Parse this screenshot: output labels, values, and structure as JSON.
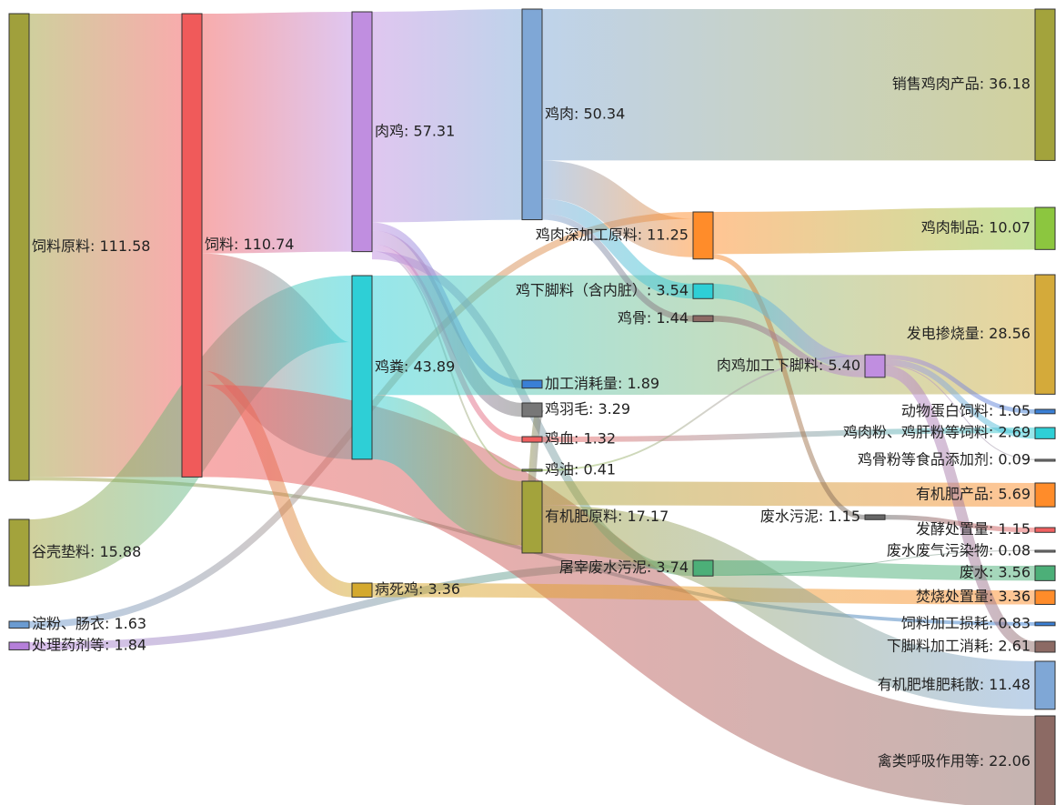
{
  "chart_data": {
    "type": "sankey",
    "nodes": [
      {
        "label": "饲料原料: 111.58",
        "value": 111.58,
        "color": "#a0a03c"
      },
      {
        "label": "谷壳垫料: 15.88",
        "value": 15.88,
        "color": "#a3a33c"
      },
      {
        "label": "淀粉、肠衣: 1.63",
        "value": 1.63,
        "color": "#6b9bd1"
      },
      {
        "label": "处理药剂等: 1.84",
        "value": 1.84,
        "color": "#b57fd9"
      },
      {
        "label": "饲料: 110.74",
        "value": 110.74,
        "color": "#f05a5a"
      },
      {
        "label": "肉鸡: 57.31",
        "value": 57.31,
        "color": "#c08ee0"
      },
      {
        "label": "鸡粪: 43.89",
        "value": 43.89,
        "color": "#2ecfd6"
      },
      {
        "label": "病死鸡: 3.36",
        "value": 3.36,
        "color": "#d4a92e"
      },
      {
        "label": "鸡肉: 50.34",
        "value": 50.34,
        "color": "#7fa7d6"
      },
      {
        "label": "加工消耗量: 1.89",
        "value": 1.89,
        "color": "#3a7fd5"
      },
      {
        "label": "鸡羽毛: 3.29",
        "value": 3.29,
        "color": "#777777"
      },
      {
        "label": "鸡血: 1.32",
        "value": 1.32,
        "color": "#f06060"
      },
      {
        "label": "鸡油: 0.41",
        "value": 0.41,
        "color": "#8fbf4a"
      },
      {
        "label": "有机肥原料: 17.17",
        "value": 17.17,
        "color": "#a3a33c"
      },
      {
        "label": "鸡肉深加工原料: 11.25",
        "value": 11.25,
        "color": "#ff8c2a"
      },
      {
        "label": "鸡下脚料（含内脏）: 3.54",
        "value": 3.54,
        "color": "#2ecfd6"
      },
      {
        "label": "鸡骨: 1.44",
        "value": 1.44,
        "color": "#8c6a64"
      },
      {
        "label": "屠宰废水污泥: 3.74",
        "value": 3.74,
        "color": "#4caf78"
      },
      {
        "label": "肉鸡加工下脚料: 5.40",
        "value": 5.4,
        "color": "#c08ee0"
      },
      {
        "label": "废水污泥: 1.15",
        "value": 1.15,
        "color": "#666666"
      },
      {
        "label": "销售鸡肉产品: 36.18",
        "value": 36.18,
        "color": "#a3a33c"
      },
      {
        "label": "鸡肉制品: 10.07",
        "value": 10.07,
        "color": "#8cc63f"
      },
      {
        "label": "发电掺烧量: 28.56",
        "value": 28.56,
        "color": "#d4aa3a"
      },
      {
        "label": "动物蛋白饲料: 1.05",
        "value": 1.05,
        "color": "#3a7fd5"
      },
      {
        "label": "鸡肉粉、鸡肝粉等饲料: 2.69",
        "value": 2.69,
        "color": "#2ecfd6"
      },
      {
        "label": "鸡骨粉等食品添加剂: 0.09",
        "value": 0.09,
        "color": "#888888"
      },
      {
        "label": "有机肥产品: 5.69",
        "value": 5.69,
        "color": "#ff8c2a"
      },
      {
        "label": "发酵处置量: 1.15",
        "value": 1.15,
        "color": "#f06060"
      },
      {
        "label": "废水废气污染物: 0.08",
        "value": 0.08,
        "color": "#888888"
      },
      {
        "label": "废水: 3.56",
        "value": 3.56,
        "color": "#4caf78"
      },
      {
        "label": "焚烧处置量: 3.36",
        "value": 3.36,
        "color": "#ff8c2a"
      },
      {
        "label": "饲料加工损耗: 0.83",
        "value": 0.83,
        "color": "#3a7fd5"
      },
      {
        "label": "下脚料加工消耗: 2.61",
        "value": 2.61,
        "color": "#8c6a64"
      },
      {
        "label": "有机肥堆肥耗散: 11.48",
        "value": 11.48,
        "color": "#7fa7d6"
      },
      {
        "label": "禽类呼吸作用等: 22.06",
        "value": 22.06,
        "color": "#8c6a64"
      }
    ],
    "links": [
      {
        "source": 0,
        "target": 4,
        "value": 110.74
      },
      {
        "source": 0,
        "target": 31,
        "value": 0.83
      },
      {
        "source": 1,
        "target": 6,
        "value": 15.88
      },
      {
        "source": 2,
        "target": 14,
        "value": 1.63
      },
      {
        "source": 3,
        "target": 17,
        "value": 1.84
      },
      {
        "source": 4,
        "target": 5,
        "value": 57.31
      },
      {
        "source": 4,
        "target": 6,
        "value": 28.01
      },
      {
        "source": 4,
        "target": 7,
        "value": 3.36
      },
      {
        "source": 4,
        "target": 34,
        "value": 22.06
      },
      {
        "source": 5,
        "target": 8,
        "value": 50.34
      },
      {
        "source": 5,
        "target": 9,
        "value": 1.89
      },
      {
        "source": 5,
        "target": 10,
        "value": 3.29
      },
      {
        "source": 5,
        "target": 11,
        "value": 1.32
      },
      {
        "source": 5,
        "target": 12,
        "value": 0.41
      },
      {
        "source": 5,
        "target": 17,
        "value": 1.9
      },
      {
        "source": 6,
        "target": 22,
        "value": 28.56
      },
      {
        "source": 6,
        "target": 13,
        "value": 15.33
      },
      {
        "source": 7,
        "target": 30,
        "value": 3.36
      },
      {
        "source": 8,
        "target": 20,
        "value": 36.18
      },
      {
        "source": 8,
        "target": 14,
        "value": 9.18
      },
      {
        "source": 8,
        "target": 15,
        "value": 3.54
      },
      {
        "source": 8,
        "target": 16,
        "value": 1.44
      },
      {
        "source": 10,
        "target": 13,
        "value": 1.84
      },
      {
        "source": 11,
        "target": 24,
        "value": 1.32
      },
      {
        "source": 12,
        "target": 18,
        "value": 0.41
      },
      {
        "source": 13,
        "target": 26,
        "value": 5.69
      },
      {
        "source": 13,
        "target": 33,
        "value": 11.48
      },
      {
        "source": 14,
        "target": 21,
        "value": 10.07
      },
      {
        "source": 14,
        "target": 19,
        "value": 1.15
      },
      {
        "source": 15,
        "target": 18,
        "value": 3.54
      },
      {
        "source": 16,
        "target": 18,
        "value": 1.44
      },
      {
        "source": 17,
        "target": 29,
        "value": 3.56
      },
      {
        "source": 17,
        "target": 28,
        "value": 0.08
      },
      {
        "source": 18,
        "target": 23,
        "value": 1.05
      },
      {
        "source": 18,
        "target": 24,
        "value": 1.37
      },
      {
        "source": 18,
        "target": 25,
        "value": 0.09
      },
      {
        "source": 18,
        "target": 32,
        "value": 2.61
      },
      {
        "source": 19,
        "target": 27,
        "value": 1.15
      }
    ]
  }
}
